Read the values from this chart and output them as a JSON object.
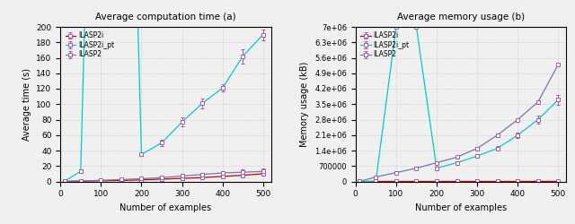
{
  "title_left": "Average computation time (a)",
  "title_right": "Average memory usage (b)",
  "xlabel": "Number of examples",
  "ylabel_left": "Average time (s)",
  "ylabel_right": "Memory usage (kB)",
  "x": [
    10,
    50,
    100,
    150,
    200,
    250,
    300,
    350,
    400,
    450,
    500
  ],
  "time_ILASP2i": [
    0.1,
    0.4,
    0.8,
    1.2,
    2.0,
    3.0,
    4.0,
    5.0,
    6.5,
    8.0,
    10.0
  ],
  "time_ILASP2i_pt": [
    0.2,
    13,
    999,
    999,
    35,
    50,
    77,
    101,
    121,
    162,
    190
  ],
  "time_ILASP2": [
    0.1,
    0.5,
    1.5,
    2.5,
    3.5,
    5.0,
    7.0,
    9.0,
    11.0,
    12.0,
    13.0
  ],
  "time_ILASP2i_err": [
    0,
    0,
    0,
    0,
    0,
    0,
    0,
    0,
    0,
    0,
    0
  ],
  "time_ILASP2i_pt_err": [
    0,
    1,
    0,
    0,
    2,
    4,
    6,
    6,
    5,
    9,
    7
  ],
  "time_ILASP2_err": [
    0,
    0,
    0,
    0,
    0,
    0,
    0,
    0,
    0,
    4,
    4
  ],
  "mem_ILASP2i": [
    100,
    200,
    400,
    600,
    800,
    1000,
    1200,
    1500,
    2000,
    2500,
    3000
  ],
  "mem_ILASP2i_pt": [
    200,
    10000,
    7000000,
    7000000,
    600000,
    850000,
    1150000,
    1500000,
    2100000,
    2800000,
    3700000
  ],
  "mem_ILASP2": [
    100,
    200000,
    400000,
    600000,
    850000,
    1100000,
    1500000,
    2100000,
    2800000,
    3600000,
    5300000
  ],
  "mem_ILASP2i_err": [
    0,
    0,
    0,
    0,
    0,
    0,
    0,
    0,
    0,
    0,
    0
  ],
  "mem_ILASP2i_pt_err": [
    0,
    0,
    0,
    0,
    40000,
    60000,
    90000,
    90000,
    130000,
    180000,
    220000
  ],
  "mem_ILASP2_err": [
    0,
    0,
    0,
    0,
    0,
    0,
    0,
    0,
    0,
    0,
    0
  ],
  "color_ILASP2i": "#cc0000",
  "color_ILASP2i_pt": "#00cccc",
  "color_ILASP2": "#7777aa",
  "xlim": [
    0,
    520
  ],
  "ylim_time": [
    0,
    200
  ],
  "ylim_mem": [
    0,
    7000000
  ],
  "yticks_time": [
    0,
    20,
    40,
    60,
    80,
    100,
    120,
    140,
    160,
    180,
    200
  ],
  "yticks_mem": [
    0,
    700000,
    1400000,
    2100000,
    2800000,
    3500000,
    4200000,
    4900000,
    5600000,
    6300000,
    7000000
  ],
  "xticks": [
    0,
    100,
    200,
    300,
    400,
    500
  ],
  "bg_color": "#f0f0f0"
}
